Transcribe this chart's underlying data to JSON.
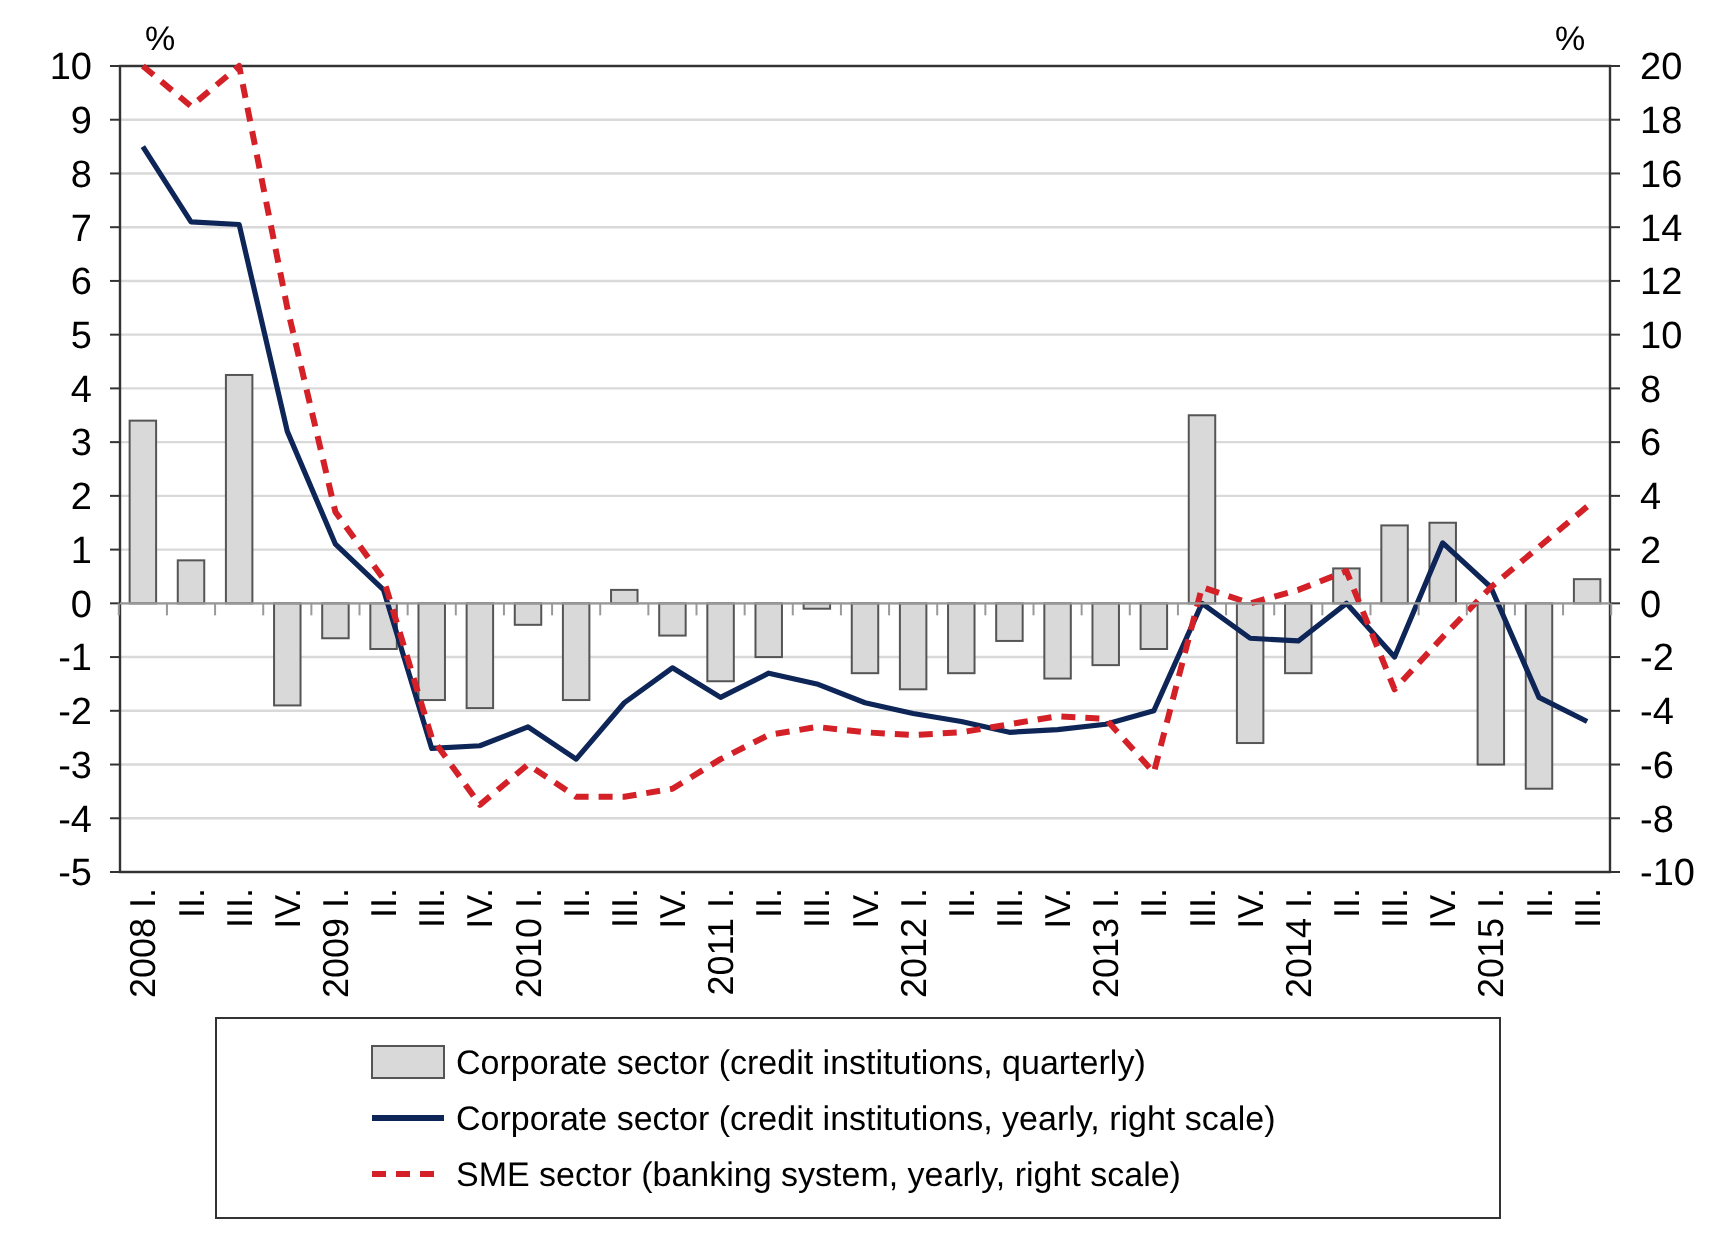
{
  "chart_data": {
    "type": "bar",
    "ylabel": "%",
    "y2label": "%",
    "categories": [
      "2008 I.",
      "II.",
      "III.",
      "IV.",
      "2009 I.",
      "II.",
      "III.",
      "IV.",
      "2010 I.",
      "II.",
      "III.",
      "IV.",
      "2011 I.",
      "II.",
      "III.",
      "IV.",
      "2012 I.",
      "II.",
      "III.",
      "IV.",
      "2013 I.",
      "II.",
      "III.",
      "IV.",
      "2014 I.",
      "II.",
      "III.",
      "IV.",
      "2015 I.",
      "II.",
      "III."
    ],
    "series": [
      {
        "name": "Corporate sector (credit institutions, quarterly)",
        "color": "#d9d9d9",
        "values": [
          3.4,
          0.8,
          4.25,
          -1.9,
          -0.65,
          -0.85,
          -1.8,
          -1.95,
          -0.4,
          -1.8,
          0.25,
          -0.6,
          -1.45,
          -1.0,
          -0.1,
          -1.3,
          -1.6,
          -1.3,
          -0.7,
          -1.4,
          -1.15,
          -0.85,
          3.5,
          -2.6,
          -1.3,
          0.65,
          1.45,
          1.5,
          -3.0,
          -3.45,
          0.45
        ]
      },
      {
        "name": "Corporate sector (credit institutions, yearly, right scale)",
        "type": "line",
        "axis": "y2",
        "color": "#0d2557",
        "line_style": "solid",
        "values": [
          17,
          14.2,
          14.1,
          6.4,
          2.2,
          0.5,
          -5.4,
          -5.3,
          -4.6,
          -5.8,
          -3.7,
          -2.4,
          -3.5,
          -2.6,
          -3.0,
          -3.7,
          -4.1,
          -4.4,
          -4.8,
          -4.7,
          -4.5,
          -4.0,
          0,
          -1.3,
          -1.4,
          0,
          -2.0,
          2.25,
          0.6,
          -3.5,
          -4.4
        ]
      },
      {
        "name": "SME sector (banking system, yearly, right scale)",
        "type": "line",
        "axis": "y2",
        "color": "#d42027",
        "line_style": "dashed",
        "values": [
          20,
          18.5,
          20,
          11,
          3.4,
          0.9,
          -5.0,
          -7.5,
          -6.0,
          -7.2,
          -7.2,
          -6.9,
          -5.8,
          -4.9,
          -4.6,
          -4.8,
          -4.9,
          -4.8,
          -4.5,
          -4.2,
          -4.3,
          -6.3,
          0.6,
          0,
          0.5,
          1.2,
          -3.2,
          -1.25,
          0.6,
          2.1,
          3.6
        ]
      }
    ],
    "ylim": [
      -5,
      10
    ],
    "yticks": [
      -5,
      -4,
      -3,
      -2,
      -1,
      0,
      1,
      2,
      3,
      4,
      5,
      6,
      7,
      8,
      9,
      10
    ],
    "y2lim": [
      -10,
      20
    ],
    "y2ticks": [
      -10,
      -8,
      -6,
      -4,
      -2,
      0,
      2,
      4,
      6,
      8,
      10,
      12,
      14,
      16,
      18,
      20
    ],
    "grid": "y",
    "legend": "bottom"
  }
}
